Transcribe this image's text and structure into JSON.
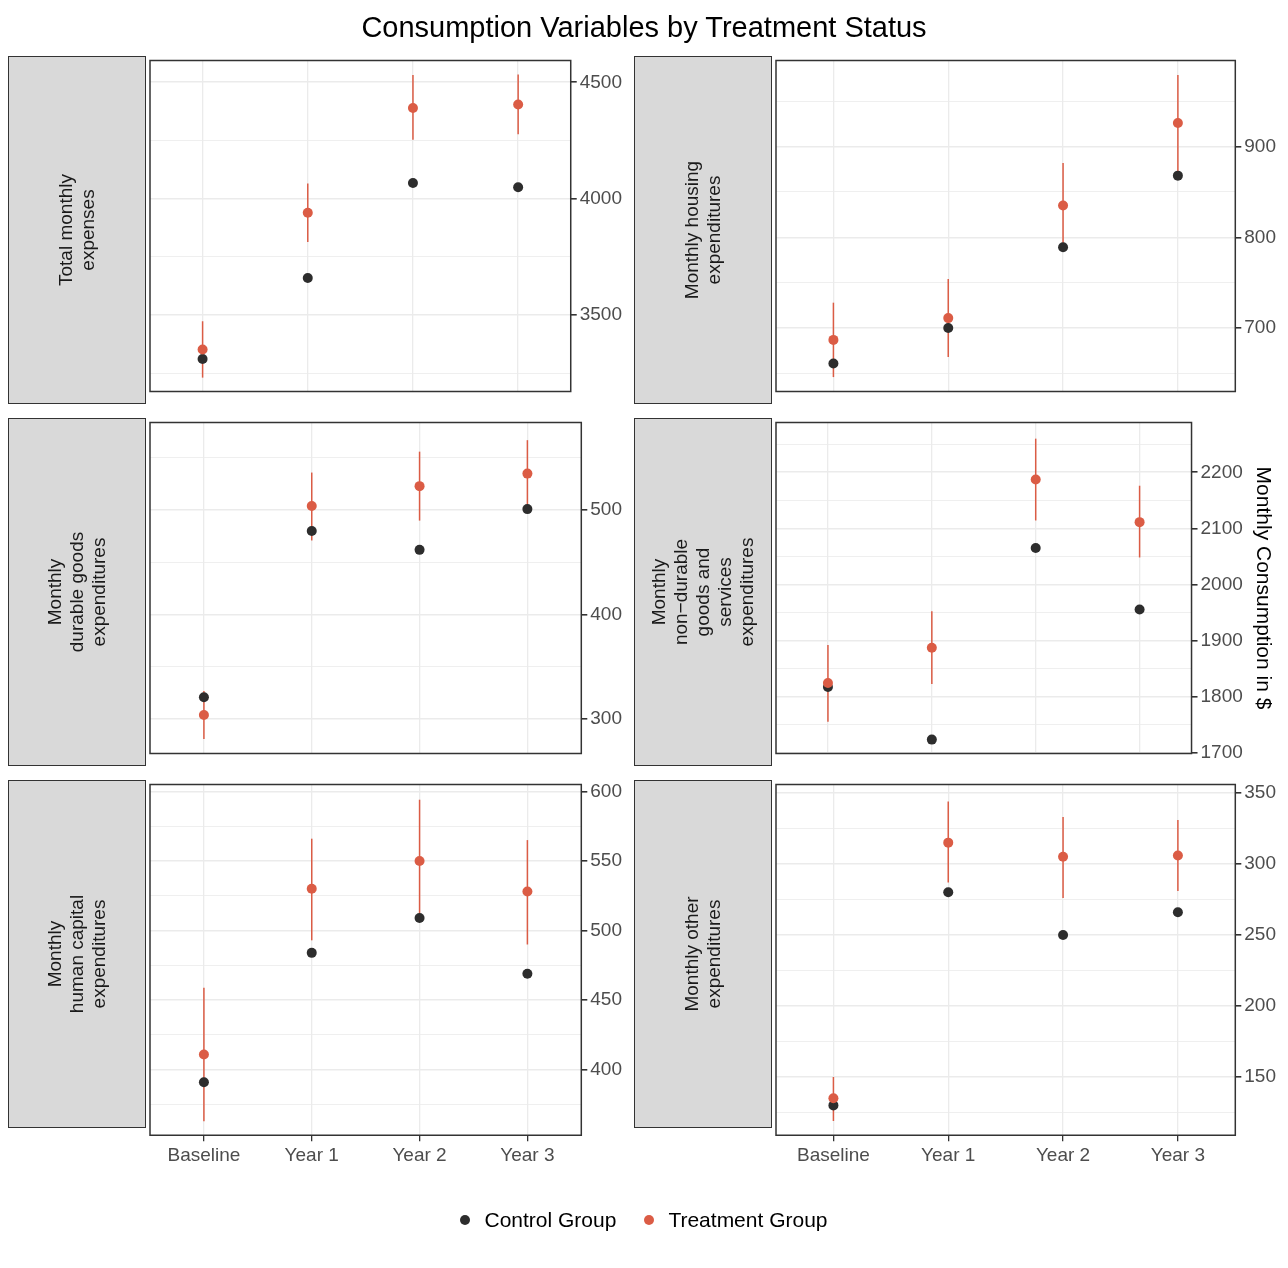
{
  "chart_data": [
    {
      "type": "scatter",
      "title": "Total monthly\nexpenses",
      "annotations": [
        "Consumption Variables by Treatment Status"
      ],
      "categories": [
        null,
        null,
        null,
        null
      ],
      "ylim": [
        3172,
        4594
      ],
      "yticks": [
        {
          "value": 3250,
          "label": null
        },
        3500,
        {
          "value": 3750,
          "label": null
        },
        4000,
        {
          "value": 4250,
          "label": null
        },
        4500
      ],
      "grid": true,
      "marker": "circle",
      "tick_labels": "y",
      "legend": "bottom",
      "series": [
        {
          "name": "Control Group",
          "color": "#2d2d2d",
          "values": [
            3312,
            3660,
            4068,
            4049
          ]
        },
        {
          "name": "Treatment Group",
          "color": "#db5c45",
          "values": [
            3353,
            3940,
            4390,
            4405
          ],
          "errors": [
            [
              3232,
              3474
            ],
            [
              3814,
              4066
            ],
            [
              4253,
              4531
            ],
            [
              4277,
              4534
            ]
          ]
        }
      ]
    },
    {
      "type": "scatter",
      "title": "Monthly housing\nexpenditures",
      "categories": [
        null,
        null,
        null,
        null
      ],
      "ylim": [
        630,
        995
      ],
      "yticks": [
        {
          "value": 650,
          "label": null
        },
        700,
        {
          "value": 750,
          "label": null
        },
        800,
        {
          "value": 850,
          "label": null
        },
        900,
        {
          "value": 950,
          "label": null
        }
      ],
      "grid": true,
      "marker": "circle",
      "tick_labels": "y",
      "series": [
        {
          "color": "#2d2d2d",
          "values": [
            661,
            700,
            789,
            868
          ]
        },
        {
          "color": "#db5c45",
          "values": [
            687,
            711,
            835,
            926
          ],
          "errors": [
            [
              646,
              728
            ],
            [
              668,
              754
            ],
            [
              785,
              882
            ],
            [
              870,
              979
            ]
          ]
        }
      ]
    },
    {
      "type": "scatter",
      "title": "Monthly\ndurable goods\nexpenditures",
      "categories": [
        null,
        null,
        null,
        null
      ],
      "ylim": [
        267,
        584
      ],
      "yticks": [
        300,
        {
          "value": 350,
          "label": null
        },
        400,
        {
          "value": 450,
          "label": null
        },
        500,
        {
          "value": 550,
          "label": null
        }
      ],
      "grid": true,
      "marker": "circle",
      "tick_labels": "y",
      "series": [
        {
          "color": "#2d2d2d",
          "values": [
            321,
            480,
            462,
            501
          ]
        },
        {
          "color": "#db5c45",
          "values": [
            304,
            504,
            523,
            535
          ],
          "errors": [
            [
              281,
              327
            ],
            [
              471,
              536
            ],
            [
              490,
              556
            ],
            [
              502,
              567
            ]
          ]
        }
      ]
    },
    {
      "type": "scatter",
      "title": "Monthly\nnon−durable\ngoods and\nservices\nexpenditures",
      "ylabel": "Monthly Consumption in $",
      "categories": [
        null,
        null,
        null,
        null
      ],
      "ylim": [
        1698,
        2289
      ],
      "yticks": [
        1700,
        {
          "value": 1750,
          "label": null
        },
        1800,
        {
          "value": 1850,
          "label": null
        },
        1900,
        {
          "value": 1950,
          "label": null
        },
        2000,
        {
          "value": 2050,
          "label": null
        },
        2100,
        {
          "value": 2150,
          "label": null
        },
        2200,
        {
          "value": 2250,
          "label": null
        }
      ],
      "grid": true,
      "marker": "circle",
      "tick_labels": "y",
      "series": [
        {
          "color": "#2d2d2d",
          "values": [
            1817,
            1723,
            2065,
            1955
          ]
        },
        {
          "color": "#db5c45",
          "values": [
            1824,
            1887,
            2187,
            2111
          ],
          "errors": [
            [
              1755,
              1892
            ],
            [
              1822,
              1952
            ],
            [
              2114,
              2260
            ],
            [
              2048,
              2176
            ]
          ]
        }
      ]
    },
    {
      "type": "scatter",
      "title": "Monthly\nhuman capital\nexpenditures",
      "categories": [
        "Baseline",
        "Year 1",
        "Year 2",
        "Year 3"
      ],
      "ylim": [
        353,
        605
      ],
      "yticks": [
        {
          "value": 375,
          "label": null
        },
        400,
        {
          "value": 425,
          "label": null
        },
        450,
        {
          "value": 475,
          "label": null
        },
        500,
        {
          "value": 525,
          "label": null
        },
        550,
        {
          "value": 575,
          "label": null
        },
        600
      ],
      "grid": true,
      "marker": "circle",
      "series": [
        {
          "color": "#2d2d2d",
          "values": [
            391,
            484,
            509,
            469
          ]
        },
        {
          "color": "#db5c45",
          "values": [
            411,
            530,
            550,
            528
          ],
          "errors": [
            [
              363,
              459
            ],
            [
              493,
              566
            ],
            [
              509,
              594
            ],
            [
              490,
              565
            ]
          ]
        }
      ]
    },
    {
      "type": "scatter",
      "title": "Monthly other\nexpenditures",
      "categories": [
        "Baseline",
        "Year 1",
        "Year 2",
        "Year 3"
      ],
      "ylim": [
        109,
        356
      ],
      "yticks": [
        {
          "value": 125,
          "label": null
        },
        150,
        {
          "value": 175,
          "label": null
        },
        200,
        {
          "value": 225,
          "label": null
        },
        250,
        {
          "value": 275,
          "label": null
        },
        300,
        {
          "value": 325,
          "label": null
        },
        350
      ],
      "grid": true,
      "marker": "circle",
      "series": [
        {
          "color": "#2d2d2d",
          "values": [
            130,
            280,
            250,
            266
          ]
        },
        {
          "color": "#db5c45",
          "values": [
            135,
            315,
            305,
            306
          ],
          "errors": [
            [
              119,
              150
            ],
            [
              287,
              344
            ],
            [
              276,
              333
            ],
            [
              281,
              331
            ]
          ]
        }
      ]
    }
  ]
}
